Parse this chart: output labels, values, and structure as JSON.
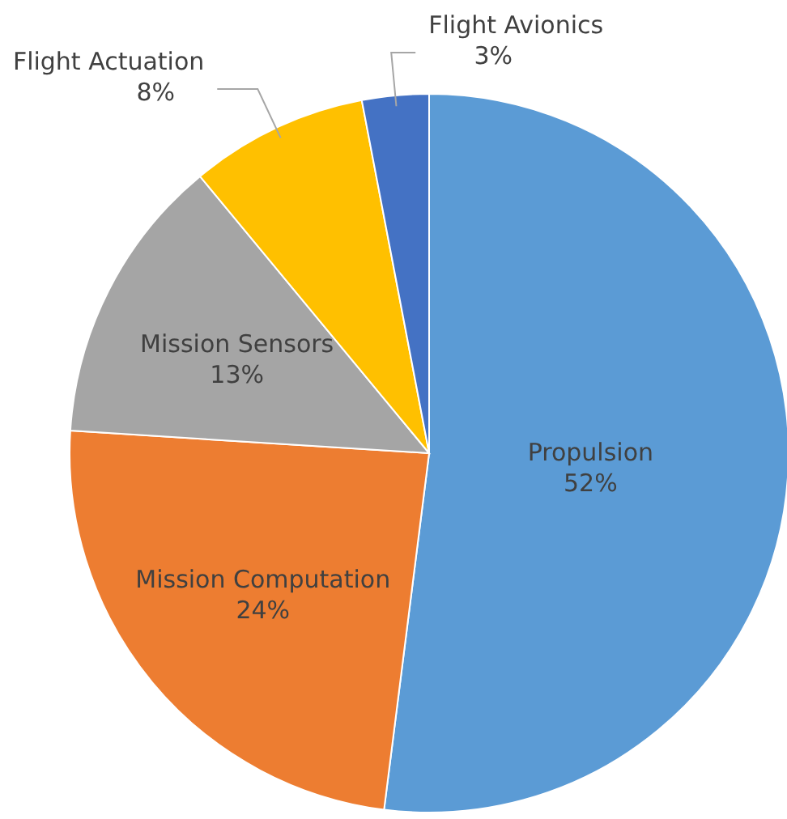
{
  "chart_data": {
    "type": "pie",
    "categories": [
      "Propulsion",
      "Mission Computation",
      "Mission Sensors",
      "Flight Actuation",
      "Flight Avionics"
    ],
    "values": [
      52,
      24,
      13,
      8,
      3
    ],
    "colors": [
      "#5b9bd5",
      "#ed7d31",
      "#a5a5a5",
      "#ffc000",
      "#4472c4"
    ],
    "value_labels": [
      "52%",
      "24%",
      "13%",
      "8%",
      "3%"
    ]
  }
}
